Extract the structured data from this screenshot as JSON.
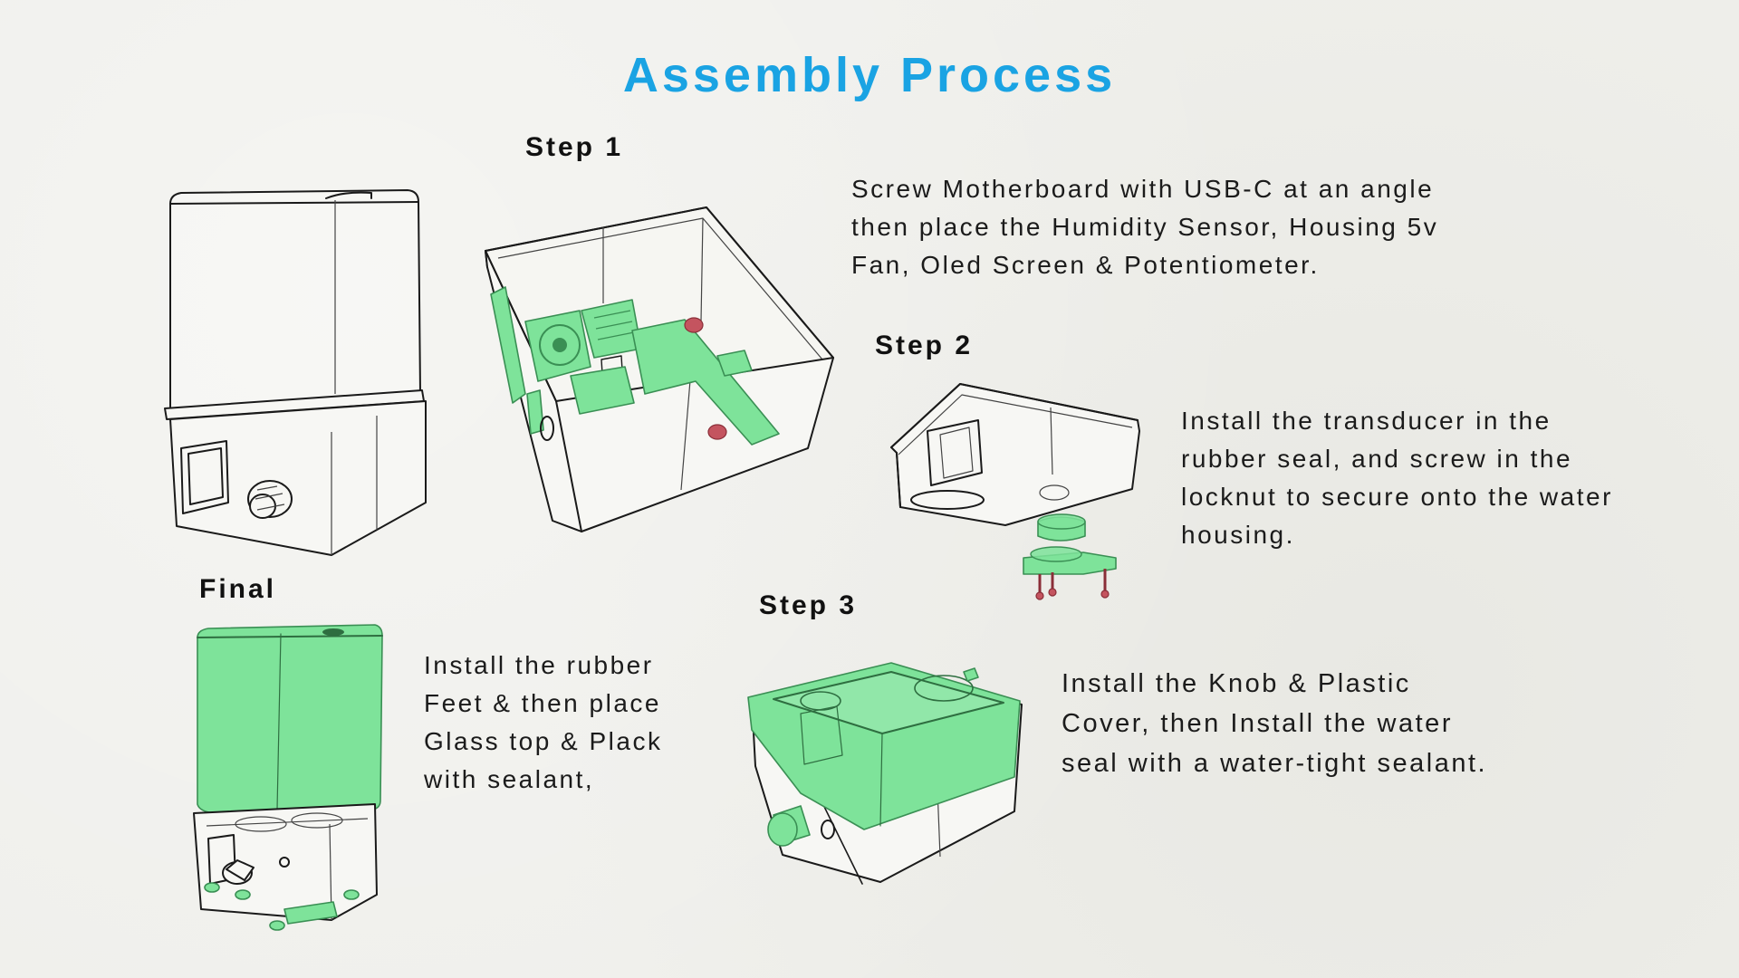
{
  "title": "Assembly Process",
  "steps": {
    "step1": {
      "heading": "Step 1",
      "text": "Screw Motherboard with USB-C at an angle\nthen place the Humidity Sensor, Housing 5v\nFan, Oled Screen & Potentiometer."
    },
    "step2": {
      "heading": "Step 2",
      "text": "Install the transducer in the\nrubber seal, and screw in the\nlocknut to secure onto the water\nhousing."
    },
    "step3": {
      "heading": "Step 3",
      "text": "Install the Knob & Plastic\nCover, then Install the water\nseal with a water-tight sealant."
    },
    "final": {
      "heading": "Final",
      "text": "Install the rubber\nFeet & then place\nGlass top & Plack\nwith sealant,"
    }
  },
  "colors": {
    "title": "#1aa3e3",
    "highlight_green": "#7ee39a",
    "screw_red": "#c4545f",
    "background": "#efefeb"
  }
}
